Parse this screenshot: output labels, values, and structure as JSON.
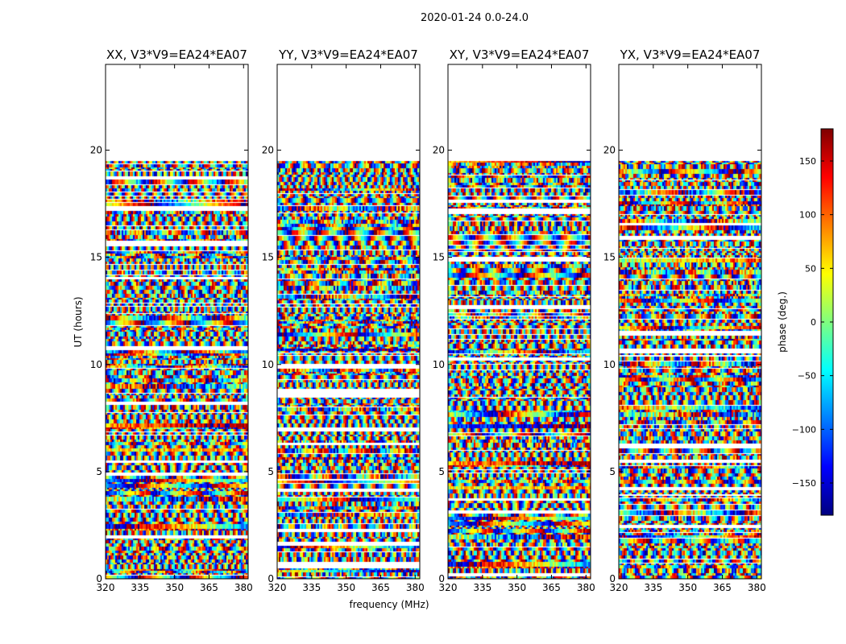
{
  "figure_title": "2020-01-24 0.0-24.0",
  "chart_data": {
    "type": "heatmap",
    "suptitle": "2020-01-24 0.0-24.0",
    "xlabel": "frequency (MHz)",
    "ylabel": "UT (hours)",
    "xlim": [
      320,
      382
    ],
    "ylim": [
      0,
      24
    ],
    "xticks": [
      320,
      335,
      350,
      365,
      380
    ],
    "yticks": [
      0,
      5,
      10,
      15,
      20
    ],
    "data_extent_ut": [
      0,
      19.5
    ],
    "panels": [
      {
        "title": "XX, V3*V9=EA24*EA07",
        "polarization": "XX"
      },
      {
        "title": "YY, V3*V9=EA24*EA07",
        "polarization": "YY"
      },
      {
        "title": "XY, V3*V9=EA24*EA07",
        "polarization": "XY"
      },
      {
        "title": "YX, V3*V9=EA24*EA07",
        "polarization": "YX"
      }
    ],
    "colorbar": {
      "label": "phase (deg.)",
      "range": [
        -180,
        180
      ],
      "ticks": [
        -150,
        -100,
        -50,
        0,
        50,
        100,
        150
      ],
      "colormap": "jet"
    }
  },
  "colors": {
    "jet": [
      "#00007f",
      "#0000ff",
      "#007fff",
      "#00ffff",
      "#7fff7f",
      "#ffff00",
      "#ff7f00",
      "#ff0000",
      "#7f0000"
    ],
    "axis": "#000000",
    "background": "#ffffff"
  }
}
